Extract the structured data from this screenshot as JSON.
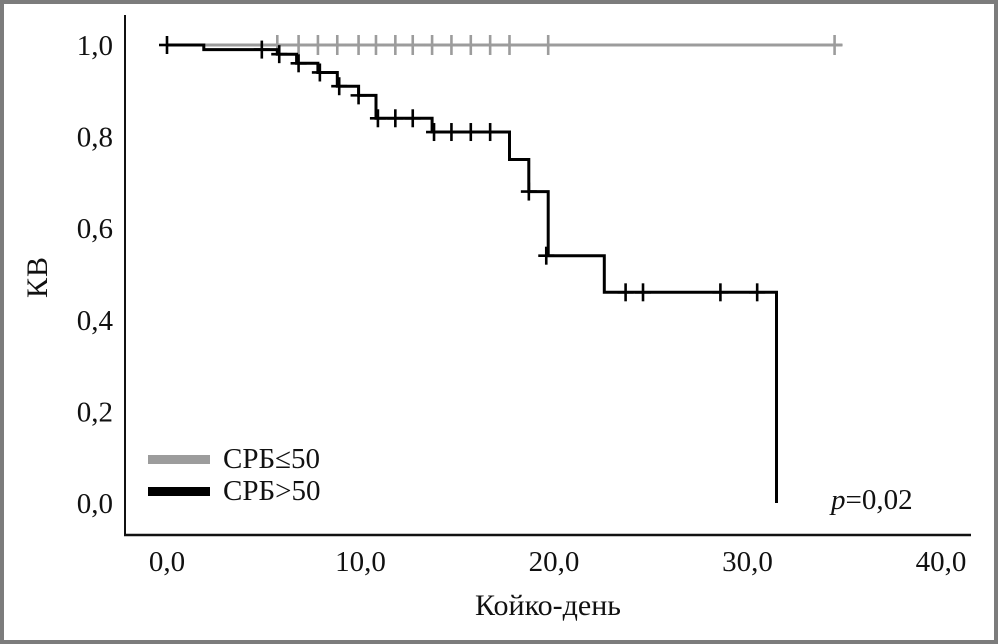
{
  "figure": {
    "ylabel": "КВ",
    "xlabel": "Койко-день",
    "annotation": {
      "italic": "p",
      "text": "=0,02"
    }
  },
  "chart_data": {
    "type": "line",
    "subtype": "kaplan-meier-step",
    "title": "",
    "xlabel": "Койко-день",
    "ylabel": "КВ",
    "xlim": [
      0,
      40
    ],
    "ylim": [
      0.0,
      1.0
    ],
    "grid": false,
    "legend_position": "lower-left-inside",
    "annotation": "p=0,02",
    "x_ticks": [
      0,
      10,
      20,
      30,
      40
    ],
    "x_tick_labels": [
      "0,0",
      "10,0",
      "20,0",
      "30,0",
      "40,0"
    ],
    "y_ticks": [
      0.0,
      0.2,
      0.4,
      0.6,
      0.8,
      1.0
    ],
    "y_tick_labels": [
      "0,0",
      "0,2",
      "0,4",
      "0,6",
      "0,8",
      "1,0"
    ],
    "series": [
      {
        "name": "СРБ≤50",
        "color": "#9c9c9c",
        "line_width": 3,
        "step_points": [
          [
            0,
            1.0
          ],
          [
            34.9,
            1.0
          ]
        ],
        "censor_marks": [
          [
            5.7,
            1.0
          ],
          [
            6.8,
            1.0
          ],
          [
            7.8,
            1.0
          ],
          [
            8.8,
            1.0
          ],
          [
            9.9,
            1.0
          ],
          [
            10.8,
            1.0
          ],
          [
            11.8,
            1.0
          ],
          [
            12.7,
            1.0
          ],
          [
            13.7,
            1.0
          ],
          [
            14.7,
            1.0
          ],
          [
            15.7,
            1.0
          ],
          [
            16.7,
            1.0
          ],
          [
            17.7,
            1.0
          ],
          [
            19.7,
            1.0
          ],
          [
            34.5,
            1.0
          ]
        ]
      },
      {
        "name": "СРБ>50",
        "color": "#000000",
        "line_width": 3,
        "step_points": [
          [
            0,
            1.0
          ],
          [
            1.9,
            1.0
          ],
          [
            1.9,
            0.99
          ],
          [
            5.7,
            0.99
          ],
          [
            5.7,
            0.98
          ],
          [
            6.7,
            0.98
          ],
          [
            6.7,
            0.96
          ],
          [
            7.8,
            0.96
          ],
          [
            7.8,
            0.94
          ],
          [
            8.8,
            0.94
          ],
          [
            8.8,
            0.91
          ],
          [
            9.9,
            0.91
          ],
          [
            9.9,
            0.89
          ],
          [
            10.8,
            0.89
          ],
          [
            10.8,
            0.84
          ],
          [
            13.7,
            0.84
          ],
          [
            13.7,
            0.81
          ],
          [
            17.7,
            0.81
          ],
          [
            17.7,
            0.75
          ],
          [
            18.7,
            0.75
          ],
          [
            18.7,
            0.68
          ],
          [
            19.7,
            0.68
          ],
          [
            19.7,
            0.54
          ],
          [
            22.6,
            0.54
          ],
          [
            22.6,
            0.46
          ],
          [
            31.5,
            0.46
          ],
          [
            31.5,
            0.0
          ]
        ],
        "censor_marks": [
          [
            0,
            1.0
          ],
          [
            4.9,
            0.99
          ],
          [
            5.8,
            0.98
          ],
          [
            6.8,
            0.96
          ],
          [
            7.9,
            0.94
          ],
          [
            8.9,
            0.91
          ],
          [
            9.9,
            0.89
          ],
          [
            10.9,
            0.84
          ],
          [
            11.8,
            0.84
          ],
          [
            12.7,
            0.84
          ],
          [
            13.8,
            0.81
          ],
          [
            14.7,
            0.81
          ],
          [
            15.7,
            0.81
          ],
          [
            16.7,
            0.81
          ],
          [
            18.7,
            0.68
          ],
          [
            19.6,
            0.54
          ],
          [
            23.7,
            0.46
          ],
          [
            24.6,
            0.46
          ],
          [
            28.6,
            0.46
          ],
          [
            30.5,
            0.46
          ]
        ]
      }
    ]
  }
}
